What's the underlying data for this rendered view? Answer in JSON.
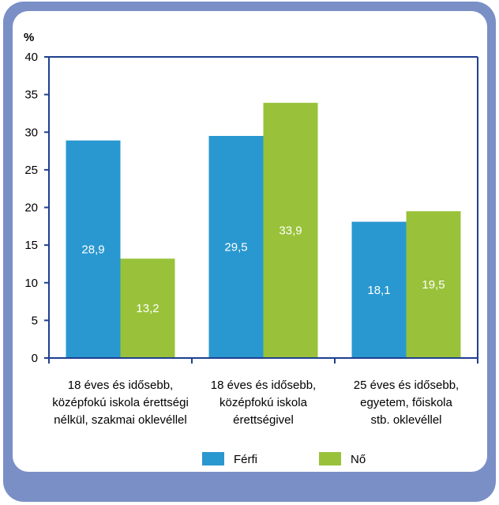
{
  "colors": {
    "frame": "#7a8fc6",
    "axis": "#1f3f8f",
    "ferfi": "#2a98d0",
    "no": "#99c23a"
  },
  "chart_data": {
    "type": "bar",
    "ylabel": "%",
    "ylim": [
      0,
      40
    ],
    "yticks": [
      0,
      5,
      10,
      15,
      20,
      25,
      30,
      35,
      40
    ],
    "categories": [
      [
        "18 éves és idősebb,",
        "középfokú iskola érettségi",
        "nélkül, szakmai oklevéllel"
      ],
      [
        "18 éves és idősebb,",
        "középfokú iskola",
        "érettségivel"
      ],
      [
        "25 éves és idősebb,",
        "egyetem, főiskola",
        "stb. oklevéllel"
      ]
    ],
    "series": [
      {
        "name": "Férfi",
        "values": [
          28.9,
          29.5,
          18.1
        ],
        "labels": [
          "28,9",
          "29,5",
          "18,1"
        ]
      },
      {
        "name": "Nő",
        "values": [
          13.2,
          33.9,
          19.5
        ],
        "labels": [
          "13,2",
          "33,9",
          "19,5"
        ]
      }
    ],
    "grid": false,
    "legend": "bottom"
  }
}
